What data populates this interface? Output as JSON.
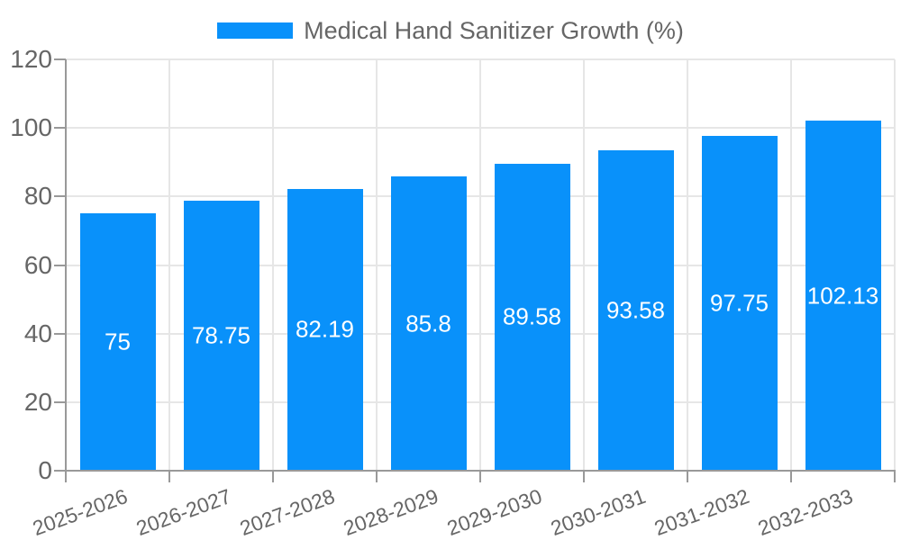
{
  "chart_data": {
    "type": "bar",
    "title": "Medical Hand Sanitizer Growth (%)",
    "legend": {
      "position": "top",
      "entries": [
        "Medical Hand Sanitizer Growth (%)"
      ]
    },
    "categories": [
      "2025-2026",
      "2026-2027",
      "2027-2028",
      "2028-2029",
      "2029-2030",
      "2030-2031",
      "2031-2032",
      "2032-2033"
    ],
    "series": [
      {
        "name": "Medical Hand Sanitizer Growth (%)",
        "values": [
          75,
          78.75,
          82.19,
          85.8,
          89.58,
          93.58,
          97.75,
          102.13
        ]
      }
    ],
    "value_labels": [
      "75",
      "78.75",
      "82.19",
      "85.8",
      "89.58",
      "93.58",
      "97.75",
      "102.13"
    ],
    "xlabel": "",
    "ylabel": "",
    "ylim": [
      0,
      120
    ],
    "yticks": [
      0,
      20,
      40,
      60,
      80,
      100,
      120
    ],
    "grid": true,
    "value_label_position": "inside-middle",
    "x_tick_rotation_deg": -20,
    "colors": {
      "bar": "#0991fa",
      "value_label": "#ffffff",
      "axis": "#999999",
      "gridline": "#e6e6e6",
      "tick_label": "#666666",
      "legend_text": "#666666",
      "background": "#ffffff"
    }
  }
}
